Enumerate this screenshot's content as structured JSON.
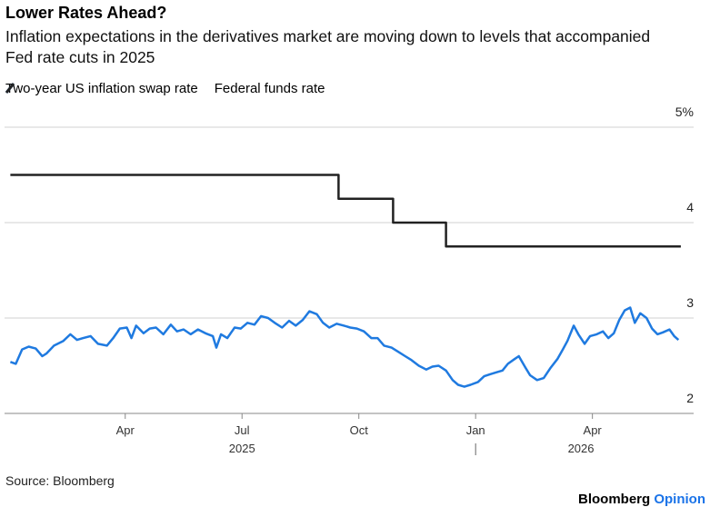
{
  "chart_data": {
    "type": "line",
    "title": "Lower Rates Ahead?",
    "subtitle": "Inflation expectations in the derivatives market are moving down to levels that accompanied Fed rate cuts in 2025",
    "source": "Source: Bloomberg",
    "xlim": [
      -0.1,
      17.6
    ],
    "xticks": [
      {
        "value": 3,
        "label": "Apr"
      },
      {
        "value": 6,
        "label": "Jul"
      },
      {
        "value": 9,
        "label": "Oct"
      },
      {
        "value": 12,
        "label": "Jan"
      },
      {
        "value": 15,
        "label": "Apr"
      }
    ],
    "years": [
      "2025",
      "2026"
    ],
    "ylim": [
      2,
      5
    ],
    "yticks": [
      2,
      3,
      4,
      {
        "value": 5,
        "label": "5%"
      }
    ],
    "grid": true,
    "series": [
      {
        "name": "Two-year US inflation swap rate",
        "color": "#1f7ae0",
        "x": [
          0.05,
          0.19,
          0.35,
          0.52,
          0.7,
          0.87,
          0.98,
          1.17,
          1.41,
          1.59,
          1.76,
          1.92,
          2.11,
          2.3,
          2.53,
          2.69,
          2.86,
          3.04,
          3.16,
          3.28,
          3.47,
          3.63,
          3.79,
          3.98,
          4.17,
          4.33,
          4.5,
          4.68,
          4.87,
          5.06,
          5.25,
          5.34,
          5.46,
          5.62,
          5.81,
          5.97,
          6.14,
          6.32,
          6.49,
          6.67,
          6.84,
          7.03,
          7.21,
          7.38,
          7.56,
          7.73,
          7.92,
          8.08,
          8.24,
          8.43,
          8.62,
          8.78,
          8.95,
          9.13,
          9.32,
          9.48,
          9.65,
          9.84,
          10.0,
          10.19,
          10.35,
          10.54,
          10.73,
          10.89,
          11.05,
          11.24,
          11.41,
          11.55,
          11.71,
          11.87,
          12.06,
          12.22,
          12.37,
          12.53,
          12.69,
          12.83,
          13.0,
          13.11,
          13.28,
          13.4,
          13.58,
          13.75,
          13.93,
          14.1,
          14.24,
          14.36,
          14.52,
          14.64,
          14.8,
          14.94,
          15.11,
          15.27,
          15.41,
          15.55,
          15.69,
          15.83,
          15.97,
          16.09,
          16.23,
          16.39,
          16.53,
          16.67,
          16.81,
          16.98,
          17.1,
          17.21
        ],
        "values": [
          2.54,
          2.52,
          2.67,
          2.7,
          2.68,
          2.6,
          2.63,
          2.71,
          2.76,
          2.83,
          2.77,
          2.79,
          2.81,
          2.73,
          2.71,
          2.79,
          2.89,
          2.9,
          2.79,
          2.92,
          2.84,
          2.89,
          2.9,
          2.83,
          2.93,
          2.86,
          2.88,
          2.83,
          2.88,
          2.84,
          2.81,
          2.69,
          2.83,
          2.79,
          2.9,
          2.89,
          2.95,
          2.93,
          3.02,
          3.0,
          2.95,
          2.9,
          2.97,
          2.92,
          2.98,
          3.07,
          3.04,
          2.95,
          2.9,
          2.94,
          2.92,
          2.9,
          2.89,
          2.86,
          2.79,
          2.79,
          2.71,
          2.69,
          2.65,
          2.6,
          2.56,
          2.5,
          2.46,
          2.49,
          2.5,
          2.45,
          2.35,
          2.3,
          2.28,
          2.3,
          2.33,
          2.39,
          2.41,
          2.43,
          2.45,
          2.52,
          2.57,
          2.6,
          2.48,
          2.4,
          2.35,
          2.37,
          2.48,
          2.57,
          2.67,
          2.76,
          2.92,
          2.83,
          2.73,
          2.81,
          2.83,
          2.86,
          2.79,
          2.84,
          2.98,
          3.08,
          3.11,
          2.95,
          3.05,
          3.0,
          2.89,
          2.83,
          2.85,
          2.88,
          2.81,
          2.77
        ]
      },
      {
        "name": "Federal funds rate",
        "color": "#222222",
        "x": [
          0.05,
          8.48,
          8.48,
          9.88,
          9.88,
          11.24,
          11.24,
          17.27
        ],
        "values": [
          4.5,
          4.5,
          4.25,
          4.25,
          4.0,
          4.0,
          3.75,
          3.75
        ]
      }
    ]
  },
  "branding": {
    "name": "Bloomberg",
    "section": "Opinion"
  }
}
